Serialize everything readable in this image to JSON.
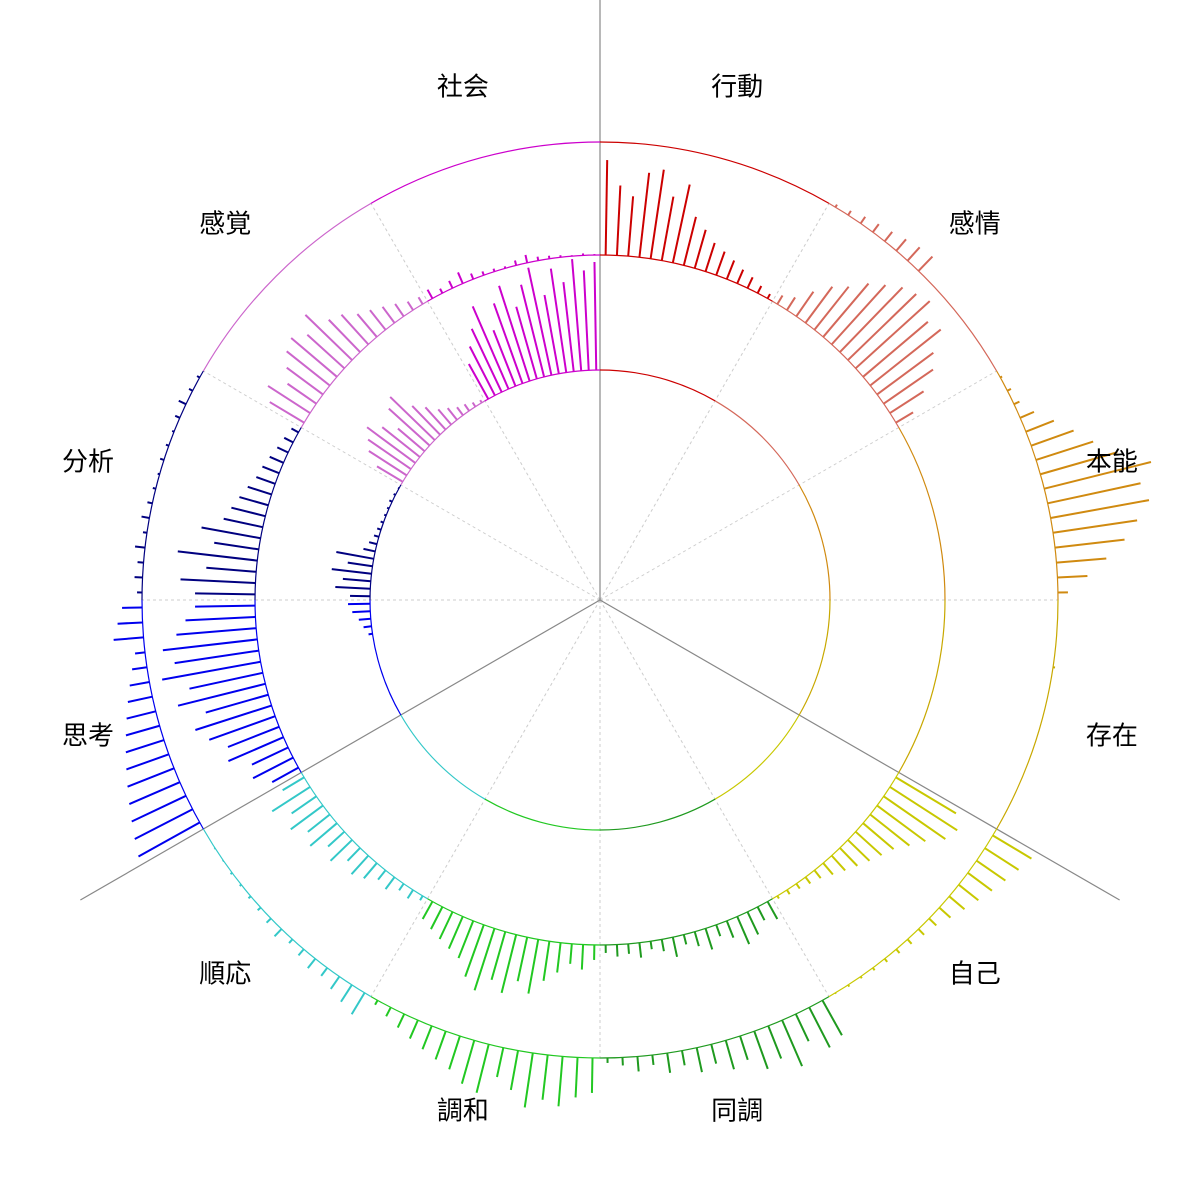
{
  "chart_data": {
    "type": "radial-bar",
    "categories": [
      "行動",
      "感情",
      "本能",
      "存在",
      "自己",
      "同調",
      "調和",
      "順応",
      "思考",
      "分析",
      "感覚",
      "社会"
    ],
    "colors": [
      "#cc0000",
      "#d4685a",
      "#d08a10",
      "#c8a800",
      "#c8c800",
      "#1f9a1f",
      "#22c822",
      "#33c8c8",
      "#0000ee",
      "#000080",
      "#cc66cc",
      "#cc00cc"
    ],
    "rings": [
      [
        [],
        [],
        [],
        [],
        [],
        [],
        [],
        [],
        [
          0,
          0,
          0,
          0,
          0,
          0,
          0,
          0,
          0,
          0,
          0,
          4,
          8,
          12,
          18,
          22
        ],
        [
          20,
          35,
          28,
          40,
          25,
          38,
          12,
          8,
          5,
          4,
          3,
          2,
          2,
          3,
          2,
          1
        ],
        [
          30,
          45,
          52,
          60,
          48,
          35,
          55,
          62,
          40,
          30,
          20,
          15,
          10,
          8,
          5,
          3
        ],
        [
          40,
          55,
          70,
          90,
          60,
          85,
          100,
          75,
          95,
          110,
          80,
          105,
          90,
          112,
          100,
          108
        ]
      ],
      [
        [
          95,
          70,
          60,
          85,
          90,
          65,
          80,
          50,
          40,
          30,
          25,
          20,
          15,
          12,
          8,
          5
        ],
        [
          10,
          15,
          30,
          45,
          55,
          70,
          80,
          90,
          95,
          100,
          85,
          90,
          70,
          60,
          40,
          20
        ],
        [],
        [],
        [
          70,
          80,
          75,
          60,
          50,
          40,
          35,
          30,
          25,
          20,
          15,
          10,
          8,
          6,
          5,
          3
        ],
        [
          20,
          15,
          25,
          30,
          18,
          12,
          22,
          15,
          10,
          20,
          12,
          8,
          15,
          10,
          12,
          8
        ],
        [
          15,
          25,
          20,
          30,
          40,
          55,
          45,
          60,
          50,
          65,
          55,
          40,
          35,
          30,
          25,
          20
        ],
        [
          5,
          10,
          8,
          15,
          12,
          20,
          25,
          18,
          30,
          22,
          35,
          28,
          40,
          30,
          45,
          25
        ],
        [
          30,
          45,
          40,
          60,
          55,
          70,
          80,
          65,
          90,
          75,
          100,
          85,
          95,
          80,
          70,
          60
        ],
        [
          60,
          75,
          50,
          80,
          45,
          60,
          40,
          35,
          30,
          25,
          20,
          18,
          15,
          12,
          10,
          8
        ],
        [
          40,
          50,
          35,
          45,
          55,
          60,
          50,
          65,
          45,
          40,
          30,
          25,
          20,
          15,
          10,
          8
        ],
        [
          10,
          5,
          8,
          12,
          6,
          4,
          3,
          2,
          5,
          8,
          4,
          3,
          2,
          1,
          2,
          1
        ]
      ],
      [
        [],
        [
          3,
          5,
          8,
          10,
          12,
          15,
          18,
          20,
          0,
          0,
          0,
          0,
          0,
          0,
          0,
          0
        ],
        [
          2,
          4,
          6,
          15,
          30,
          45,
          60,
          80,
          110,
          95,
          100,
          85,
          70,
          50,
          30,
          10
        ],
        [
          0,
          0,
          0,
          0,
          2,
          0,
          0,
          0,
          0,
          0,
          0,
          0,
          0,
          0,
          0,
          0
        ],
        [
          45,
          40,
          35,
          30,
          25,
          20,
          15,
          10,
          8,
          6,
          5,
          4,
          3,
          2,
          2,
          1
        ],
        [
          40,
          45,
          30,
          50,
          35,
          40,
          25,
          30,
          20,
          25,
          15,
          20,
          10,
          15,
          8,
          5
        ],
        [
          35,
          40,
          50,
          45,
          55,
          40,
          30,
          50,
          45,
          35,
          30,
          25,
          20,
          15,
          10,
          5
        ],
        [
          25,
          20,
          15,
          10,
          12,
          8,
          5,
          10,
          6,
          4,
          3,
          2,
          2,
          1,
          1,
          0
        ],
        [
          70,
          65,
          60,
          55,
          50,
          45,
          40,
          35,
          30,
          25,
          20,
          15,
          10,
          30,
          25,
          20
        ],
        [
          5,
          8,
          6,
          10,
          4,
          8,
          5,
          3,
          2,
          4,
          3,
          2,
          5,
          8,
          4,
          3
        ],
        [],
        []
      ]
    ]
  }
}
